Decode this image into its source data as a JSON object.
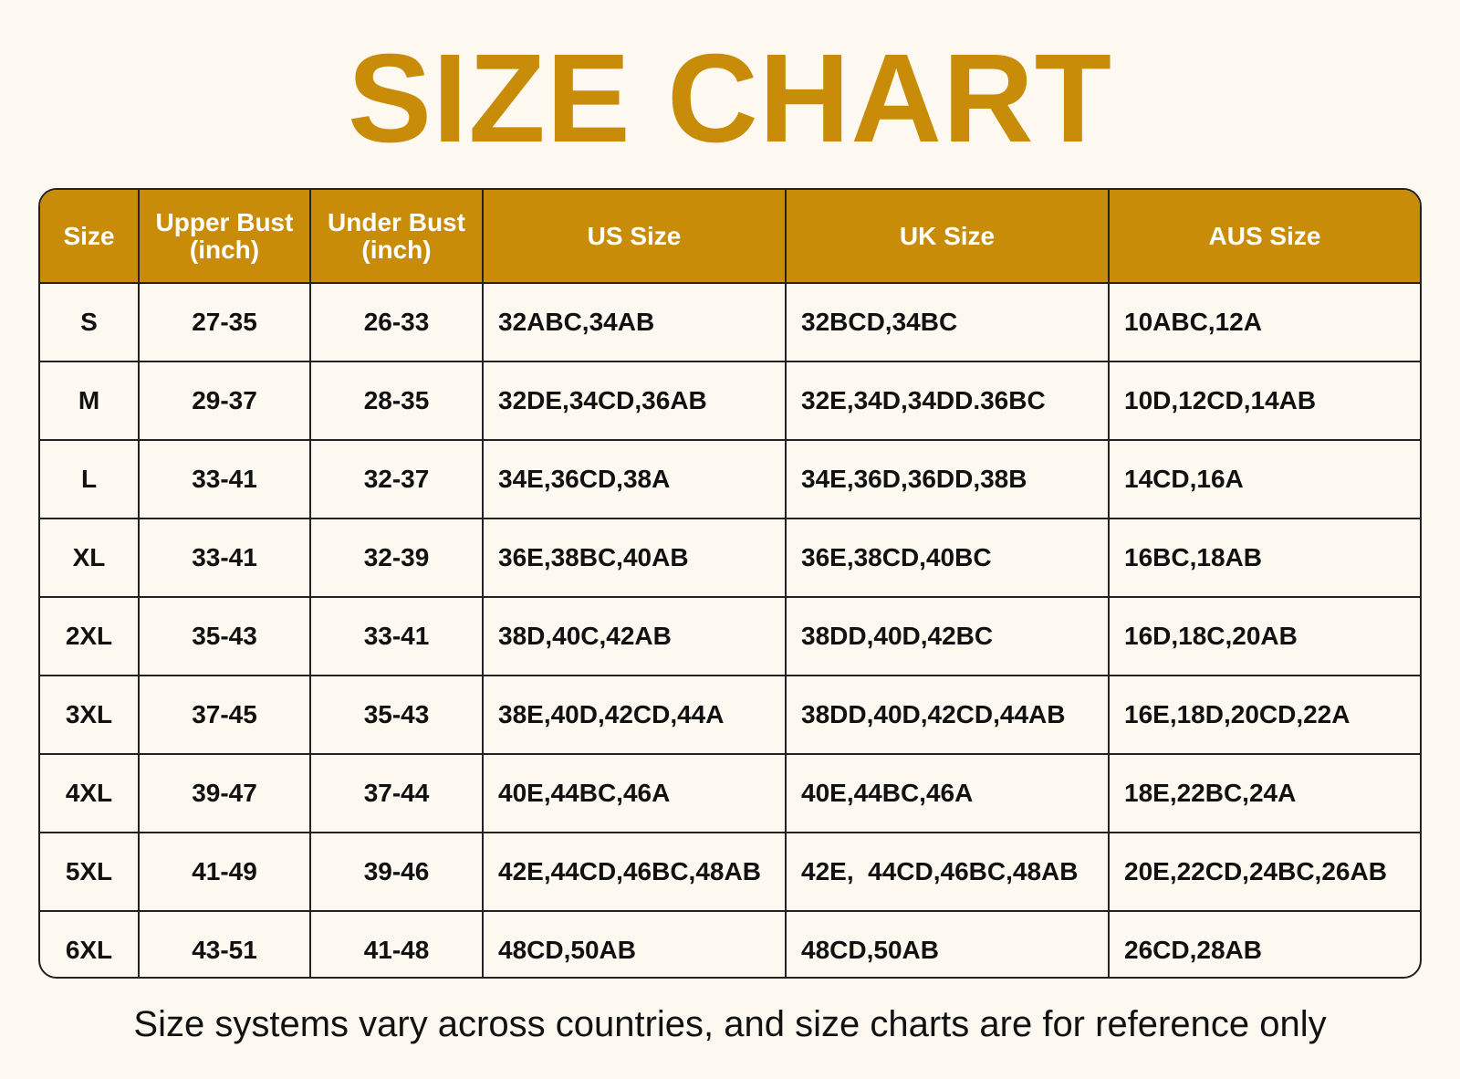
{
  "title": "SIZE CHART",
  "colors": {
    "accent": "#c98c08",
    "background": "#fdf9f1",
    "border": "#222222"
  },
  "table": {
    "headers": [
      {
        "line1": "Size",
        "line2": ""
      },
      {
        "line1": "Upper Bust",
        "line2": "(inch)"
      },
      {
        "line1": "Under Bust",
        "line2": "(inch)"
      },
      {
        "line1": "US Size",
        "line2": ""
      },
      {
        "line1": "UK Size",
        "line2": ""
      },
      {
        "line1": "AUS Size",
        "line2": ""
      }
    ],
    "rows": [
      [
        "S",
        "27-35",
        "26-33",
        "32ABC,34AB",
        "32BCD,34BC",
        "10ABC,12A"
      ],
      [
        "M",
        "29-37",
        "28-35",
        "32DE,34CD,36AB",
        "32E,34D,34DD.36BC",
        "10D,12CD,14AB"
      ],
      [
        "L",
        "33-41",
        "32-37",
        "34E,36CD,38A",
        "34E,36D,36DD,38B",
        "14CD,16A"
      ],
      [
        "XL",
        "33-41",
        "32-39",
        "36E,38BC,40AB",
        "36E,38CD,40BC",
        "16BC,18AB"
      ],
      [
        "2XL",
        "35-43",
        "33-41",
        "38D,40C,42AB",
        "38DD,40D,42BC",
        "16D,18C,20AB"
      ],
      [
        "3XL",
        "37-45",
        "35-43",
        "38E,40D,42CD,44A",
        "38DD,40D,42CD,44AB",
        "16E,18D,20CD,22A"
      ],
      [
        "4XL",
        "39-47",
        "37-44",
        "40E,44BC,46A",
        "40E,44BC,46A",
        "18E,22BC,24A"
      ],
      [
        "5XL",
        "41-49",
        "39-46",
        "42E,44CD,46BC,48AB",
        "42E,  44CD,46BC,48AB",
        "20E,22CD,24BC,26AB"
      ],
      [
        "6XL",
        "43-51",
        "41-48",
        "48CD,50AB",
        "48CD,50AB",
        "26CD,28AB"
      ]
    ]
  },
  "footer": "Size systems vary across countries, and size charts are for reference only"
}
